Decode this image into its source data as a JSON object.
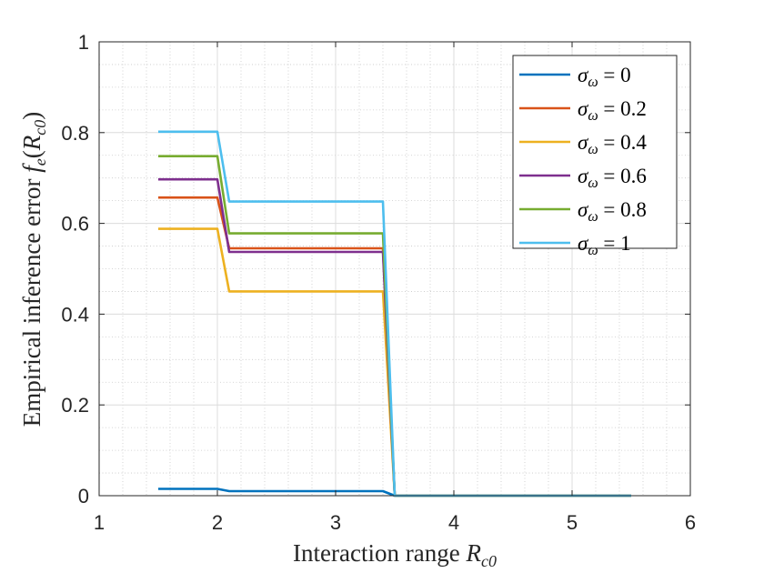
{
  "chart_data": {
    "type": "line",
    "title": "",
    "xlabel": {
      "text": "Interaction range ",
      "var": "R",
      "sub": "c0"
    },
    "ylabel": {
      "text": "Empirical inference error ",
      "fn": "f",
      "fn_sub": "e",
      "arg": "R",
      "arg_sub": "c0"
    },
    "xlim": [
      1,
      6
    ],
    "ylim": [
      0,
      1
    ],
    "xticks": [
      1,
      2,
      3,
      4,
      5,
      6
    ],
    "yticks": [
      0,
      0.2,
      0.4,
      0.6,
      0.8,
      1
    ],
    "xtick_labels": [
      "1",
      "2",
      "3",
      "4",
      "5",
      "6"
    ],
    "ytick_labels": [
      "0",
      "0.2",
      "0.4",
      "0.6",
      "0.8",
      "1"
    ],
    "x_minor_step": 0.2,
    "y_minor_step": 0.05,
    "grid": true,
    "minor_grid": true,
    "legend_position": "top-right",
    "legend_symbol": "σ",
    "legend_subscript": "ω",
    "legend_eq": " = ",
    "x": [
      1.5,
      2.0,
      2.1,
      2.2,
      2.3,
      2.4,
      2.5,
      2.6,
      2.7,
      2.8,
      2.9,
      3.0,
      3.1,
      3.2,
      3.3,
      3.4,
      3.5,
      3.6,
      3.7,
      3.8,
      3.9,
      4.0,
      4.1,
      4.2,
      4.3,
      4.4,
      4.5,
      4.6,
      4.7,
      4.8,
      4.9,
      5.0,
      5.1,
      5.2,
      5.3,
      5.4,
      5.5
    ],
    "series": [
      {
        "name": "σω = 0",
        "value_label": "0",
        "color": "#0072BD",
        "steps": [
          [
            1.5,
            0.015
          ],
          [
            2.0,
            0.015
          ],
          [
            2.1,
            0.01
          ],
          [
            3.4,
            0.01
          ],
          [
            3.5,
            0
          ],
          [
            5.5,
            0
          ]
        ]
      },
      {
        "name": "σω = 0.2",
        "value_label": "0.2",
        "color": "#D95319",
        "steps": [
          [
            1.5,
            0.657
          ],
          [
            2.0,
            0.657
          ],
          [
            2.1,
            0.545
          ],
          [
            3.4,
            0.545
          ],
          [
            3.5,
            0
          ],
          [
            5.5,
            0
          ]
        ]
      },
      {
        "name": "σω = 0.4",
        "value_label": "0.4",
        "color": "#EDB120",
        "steps": [
          [
            1.5,
            0.588
          ],
          [
            2.0,
            0.588
          ],
          [
            2.1,
            0.45
          ],
          [
            3.4,
            0.45
          ],
          [
            3.5,
            0
          ],
          [
            5.5,
            0
          ]
        ]
      },
      {
        "name": "σω = 0.6",
        "value_label": "0.6",
        "color": "#7E2F8E",
        "steps": [
          [
            1.5,
            0.697
          ],
          [
            2.0,
            0.697
          ],
          [
            2.1,
            0.537
          ],
          [
            3.4,
            0.537
          ],
          [
            3.5,
            0
          ],
          [
            5.5,
            0
          ]
        ]
      },
      {
        "name": "σω = 0.8",
        "value_label": "0.8",
        "color": "#77AC30",
        "steps": [
          [
            1.5,
            0.748
          ],
          [
            2.0,
            0.748
          ],
          [
            2.1,
            0.578
          ],
          [
            3.4,
            0.578
          ],
          [
            3.5,
            0
          ],
          [
            5.5,
            0
          ]
        ]
      },
      {
        "name": "σω = 1",
        "value_label": "1",
        "color": "#4DBEEE",
        "steps": [
          [
            1.5,
            0.802
          ],
          [
            2.0,
            0.802
          ],
          [
            2.1,
            0.648
          ],
          [
            3.4,
            0.648
          ],
          [
            3.5,
            0
          ],
          [
            5.5,
            0
          ]
        ]
      }
    ]
  }
}
